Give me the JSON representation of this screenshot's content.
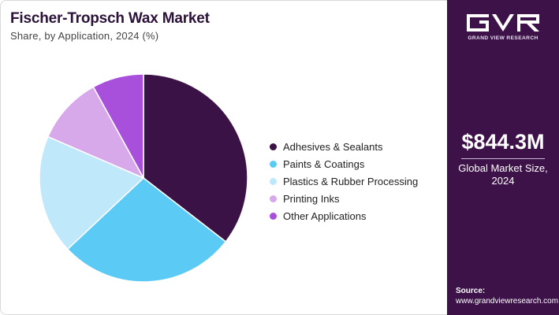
{
  "header": {
    "title": "Fischer-Tropsch Wax Market",
    "subtitle": "Share, by Application, 2024 (%)"
  },
  "sidebar": {
    "brand": "GRAND VIEW RESEARCH",
    "value": "$844.3M",
    "value_label_line1": "Global Market Size,",
    "value_label_line2": "2024",
    "source_label": "Source:",
    "source_url": "www.grandviewresearch.com",
    "background_color": "#3c1249"
  },
  "chart_data": {
    "type": "pie",
    "title": "Fischer-Tropsch Wax Market",
    "subtitle": "Share, by Application, 2024 (%)",
    "start_angle_deg": 0,
    "direction": "clockwise",
    "legend_position": "right",
    "labels": [
      "Adhesives & Sealants",
      "Paints & Coatings",
      "Plastics & Rubber Processing",
      "Printing Inks",
      "Other Applications"
    ],
    "values": [
      35.5,
      27.5,
      18.5,
      10.5,
      8.0
    ],
    "colors": [
      "#3a1245",
      "#5bcbf5",
      "#bfe9fa",
      "#d8a9ea",
      "#a84fdc"
    ]
  }
}
